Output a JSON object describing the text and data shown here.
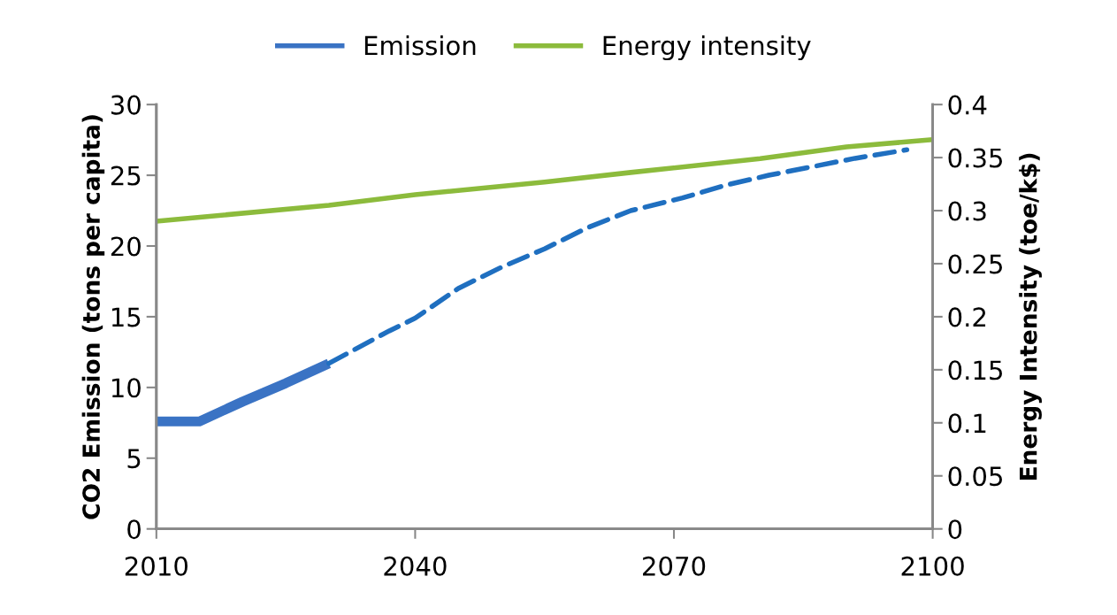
{
  "chart_data": {
    "type": "line",
    "ylabel": "CO2 Emission (tons per capita)",
    "y2label": "Energy Intensity (toe/k$)",
    "xlim": [
      2010,
      2100
    ],
    "xticks": [
      2010,
      2040,
      2070,
      2100
    ],
    "ylim": [
      0,
      30
    ],
    "yticks": [
      0,
      5,
      10,
      15,
      20,
      25,
      30
    ],
    "y2lim": [
      0,
      0.4
    ],
    "y2ticks": [
      0,
      0.05,
      0.1,
      0.15,
      0.2,
      0.25,
      0.3,
      0.35,
      0.4
    ],
    "grid": false,
    "legend": "top",
    "marker": "none",
    "series": [
      {
        "name": "Emission",
        "color": "#3a73c4",
        "line_style": "solid",
        "x": [
          2010,
          2015,
          2020,
          2025,
          2030
        ],
        "values": [
          7.6,
          7.6,
          9.0,
          10.3,
          11.7
        ]
      },
      {
        "color": "#1f6fc0",
        "line_style": "dashed",
        "x": [
          2030,
          2037,
          2040,
          2045,
          2050,
          2055,
          2060,
          2065,
          2071,
          2076,
          2081,
          2086,
          2091,
          2097
        ],
        "values": [
          11.7,
          14.0,
          14.9,
          17.0,
          18.5,
          19.8,
          21.3,
          22.5,
          23.4,
          24.3,
          25.0,
          25.6,
          26.2,
          26.8
        ]
      },
      {
        "name": "Energy intensity",
        "color": "#8cbb3c",
        "line_style": "solid",
        "axis": "y2",
        "x": [
          2010,
          2030,
          2040,
          2055,
          2065,
          2080,
          2090,
          2100
        ],
        "values": [
          0.29,
          0.305,
          0.315,
          0.327,
          0.336,
          0.349,
          0.36,
          0.367
        ]
      }
    ]
  }
}
